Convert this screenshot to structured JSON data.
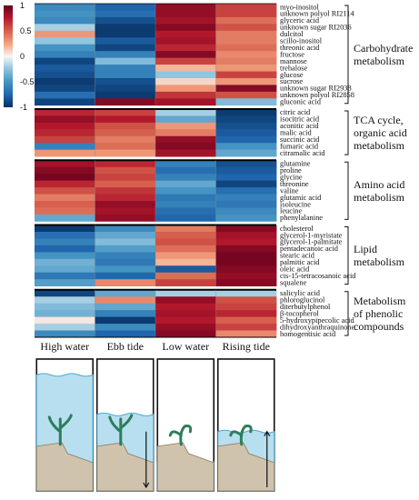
{
  "chart_data": {
    "type": "heatmap",
    "title": "",
    "xlabel": "",
    "ylabel": "",
    "columns": [
      "High water",
      "Ebb tide",
      "Low water",
      "Rising tide"
    ],
    "color_scale": {
      "min": -1,
      "max": 1,
      "ticks": [
        "1",
        "0.5",
        "0",
        "-0.5",
        "-1"
      ],
      "low_color": "#053061",
      "mid_color": "#f7f7f7",
      "high_color": "#b2182b"
    },
    "groups": [
      {
        "label_lines": [
          "Carbohydrate",
          "metabolism"
        ],
        "rows": [
          {
            "name": "myo-inositol",
            "values": [
              -0.55,
              -0.75,
              0.85,
              0.6
            ]
          },
          {
            "name": "unknown polyol RI2114",
            "values": [
              -0.5,
              -0.7,
              0.85,
              0.6
            ]
          },
          {
            "name": "glyceric acid",
            "values": [
              -0.55,
              -0.85,
              0.8,
              0.45
            ]
          },
          {
            "name": "unknown sugar RI2036",
            "values": [
              -0.2,
              -0.95,
              0.9,
              0.55
            ]
          },
          {
            "name": "dulcitol",
            "values": [
              0.3,
              -0.95,
              0.75,
              0.4
            ]
          },
          {
            "name": "scillo-inositol",
            "values": [
              -0.25,
              -0.8,
              0.8,
              0.4
            ]
          },
          {
            "name": "threonic acid",
            "values": [
              -0.5,
              -0.9,
              0.7,
              0.45
            ]
          },
          {
            "name": "fructose",
            "values": [
              -0.6,
              -0.6,
              0.9,
              0.35
            ]
          },
          {
            "name": "mannose",
            "values": [
              -0.9,
              -0.3,
              0.6,
              0.4
            ]
          },
          {
            "name": "trehalose",
            "values": [
              -0.8,
              -0.6,
              0.2,
              0.3
            ]
          },
          {
            "name": "glucose",
            "values": [
              -0.85,
              -0.6,
              -0.25,
              0.6
            ]
          },
          {
            "name": "sucrose",
            "values": [
              -0.95,
              -0.85,
              0.1,
              0.3
            ]
          },
          {
            "name": "unknown sugar RI2938",
            "values": [
              -0.9,
              -0.9,
              0.3,
              0.9
            ]
          },
          {
            "name": "unknown polyol RI2858",
            "values": [
              -0.7,
              -0.95,
              0.65,
              0.55
            ]
          },
          {
            "name": "gluconic acid",
            "values": [
              -0.9,
              0.9,
              0.8,
              -0.3
            ]
          }
        ]
      },
      {
        "label_lines": [
          "TCA cycle,",
          "organic acid",
          "metabolism"
        ],
        "rows": [
          {
            "name": "citric acid",
            "values": [
              0.7,
              0.6,
              -0.2,
              -0.95
            ]
          },
          {
            "name": "isocitric acid",
            "values": [
              0.85,
              0.75,
              -0.4,
              -0.9
            ]
          },
          {
            "name": "aconitic acid",
            "values": [
              0.75,
              0.55,
              0.3,
              -0.85
            ]
          },
          {
            "name": "malic acid",
            "values": [
              0.7,
              0.5,
              0.4,
              -0.8
            ]
          },
          {
            "name": "succinic acid",
            "values": [
              0.6,
              0.4,
              0.85,
              -0.75
            ]
          },
          {
            "name": "fumaric acid",
            "values": [
              -0.6,
              0.45,
              0.9,
              -0.5
            ]
          },
          {
            "name": "citramalic acid",
            "values": [
              0.3,
              0.3,
              0.8,
              -0.4
            ]
          }
        ]
      },
      {
        "label_lines": [
          "Amino acid",
          "metabolism"
        ],
        "rows": [
          {
            "name": "glutamine",
            "values": [
              0.8,
              0.7,
              -0.6,
              -0.85
            ]
          },
          {
            "name": "proline",
            "values": [
              0.9,
              0.55,
              -0.7,
              -0.8
            ]
          },
          {
            "name": "glycine",
            "values": [
              0.95,
              0.6,
              -0.6,
              -0.75
            ]
          },
          {
            "name": "threonine",
            "values": [
              0.7,
              0.5,
              -0.4,
              -0.9
            ]
          },
          {
            "name": "valine",
            "values": [
              0.55,
              0.65,
              -0.5,
              -0.7
            ]
          },
          {
            "name": "glutamic acid",
            "values": [
              0.4,
              0.7,
              -0.65,
              -0.6
            ]
          },
          {
            "name": "isoleucine",
            "values": [
              0.5,
              0.85,
              -0.6,
              -0.65
            ]
          },
          {
            "name": "leucine",
            "values": [
              0.45,
              0.8,
              -0.7,
              -0.55
            ]
          },
          {
            "name": "phenylalanine",
            "values": [
              -0.4,
              0.85,
              -0.75,
              -0.5
            ]
          }
        ]
      },
      {
        "label_lines": [
          "Lipid",
          "metabolism"
        ],
        "rows": [
          {
            "name": "cholesterol",
            "values": [
              -0.95,
              -0.55,
              0.4,
              0.9
            ]
          },
          {
            "name": "glycerol-1-myristate",
            "values": [
              -0.7,
              -0.4,
              0.5,
              0.8
            ]
          },
          {
            "name": "glycerol-1-palmitate",
            "values": [
              -0.6,
              -0.3,
              0.55,
              0.75
            ]
          },
          {
            "name": "pentadecanoic acid",
            "values": [
              -0.75,
              -0.45,
              0.45,
              0.9
            ]
          },
          {
            "name": "stearic acid",
            "values": [
              -0.5,
              -0.6,
              0.3,
              0.95
            ]
          },
          {
            "name": "palmitic acid",
            "values": [
              -0.35,
              -0.65,
              0.2,
              0.95
            ]
          },
          {
            "name": "oleic acid",
            "values": [
              -0.4,
              -0.5,
              -0.8,
              0.9
            ]
          },
          {
            "name": "cis-15-tetracosanoic acid",
            "values": [
              -0.65,
              -0.75,
              0.45,
              0.85
            ]
          },
          {
            "name": "squalene",
            "values": [
              -0.45,
              0.35,
              0.6,
              0.9
            ]
          }
        ]
      },
      {
        "label_lines": [
          "Metabolism",
          "of phenolic",
          "compounds"
        ],
        "rows": [
          {
            "name": "salicylic acid",
            "values": [
              -0.9,
              -0.4,
              -0.2,
              -0.2
            ]
          },
          {
            "name": "phloroglucinol",
            "values": [
              -0.2,
              0.35,
              0.85,
              0.55
            ]
          },
          {
            "name": "diterbutylphenol",
            "values": [
              -0.3,
              -0.4,
              0.75,
              0.6
            ]
          },
          {
            "name": "β-tocopherol",
            "values": [
              -0.35,
              -0.6,
              0.8,
              0.7
            ]
          },
          {
            "name": "5-hydroxypipecolic acid",
            "values": [
              0.05,
              -0.95,
              0.75,
              0.5
            ]
          },
          {
            "name": "dihydroxyanthraquinone",
            "values": [
              -0.2,
              -0.55,
              0.85,
              0.6
            ]
          },
          {
            "name": "homogentisic acid",
            "values": [
              -0.55,
              -0.75,
              0.9,
              0.35
            ]
          }
        ]
      }
    ],
    "tide_illustrations": [
      {
        "label": "High water",
        "water": "high",
        "arrow": "none"
      },
      {
        "label": "Ebb tide",
        "water": "falling",
        "arrow": "down"
      },
      {
        "label": "Low water",
        "water": "low",
        "arrow": "none"
      },
      {
        "label": "Rising tide",
        "water": "rising",
        "arrow": "up"
      }
    ]
  }
}
